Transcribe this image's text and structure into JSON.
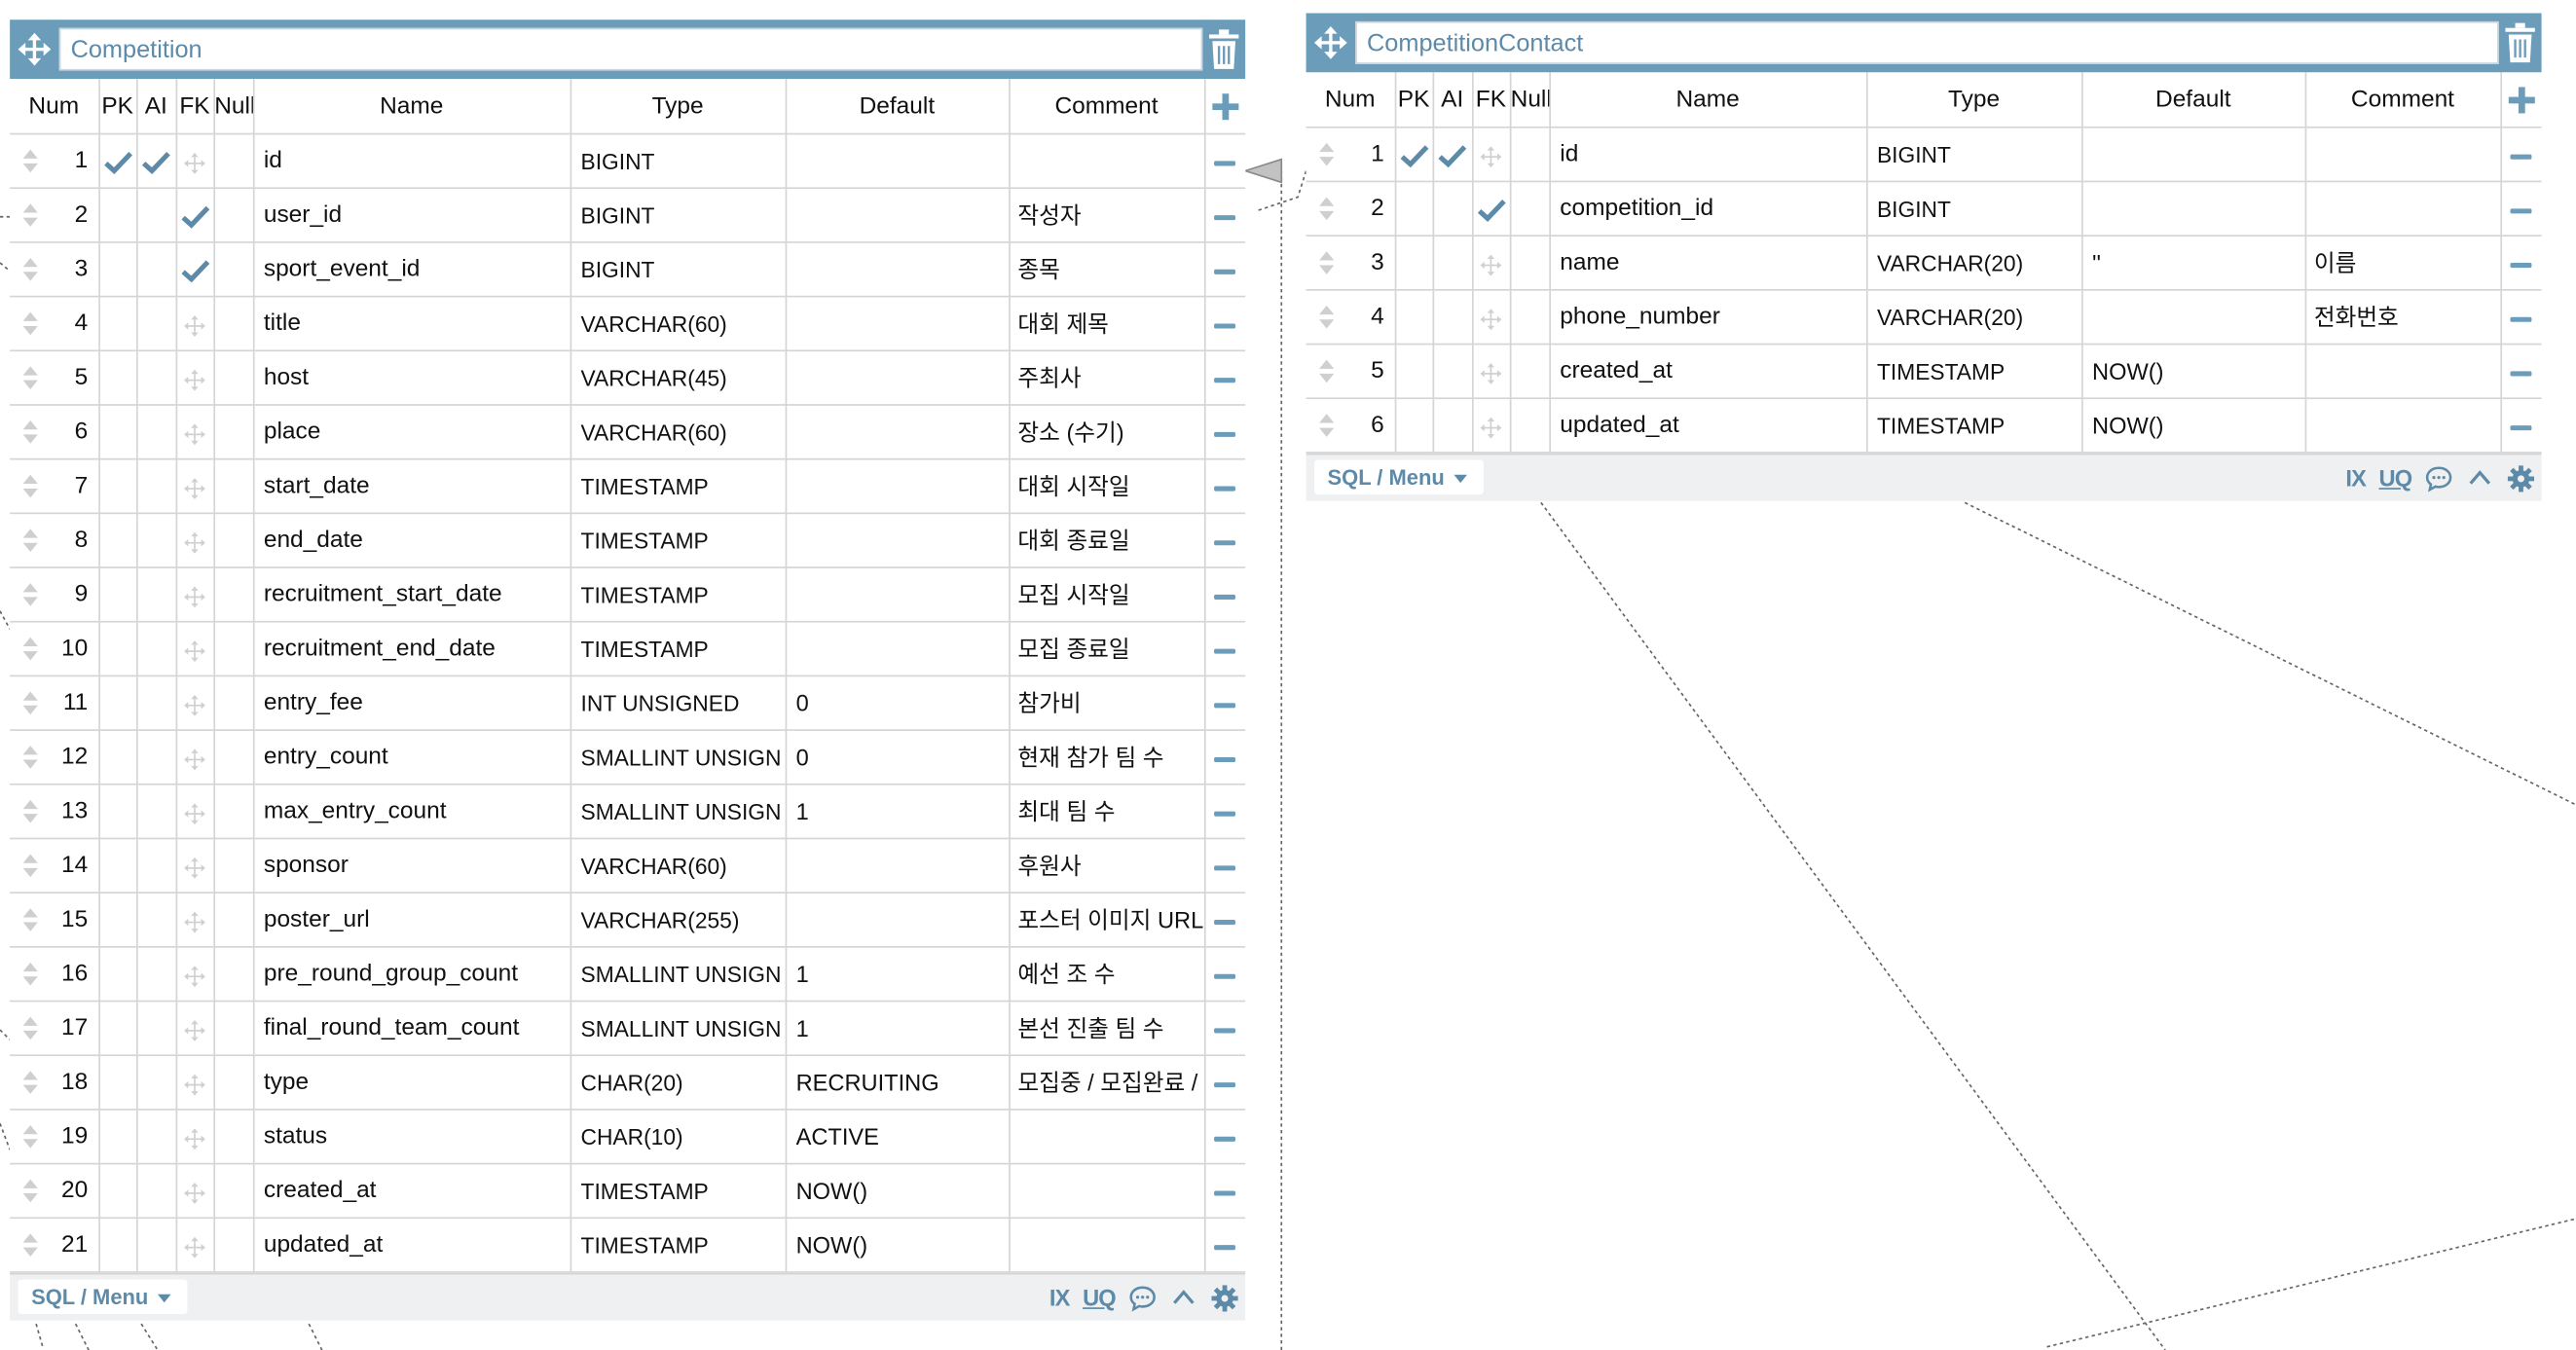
{
  "headers": {
    "num": "Num",
    "pk": "PK",
    "ai": "AI",
    "fk": "FK",
    "null": "Null",
    "name": "Name",
    "type": "Type",
    "default": "Default",
    "comment": "Comment"
  },
  "footer": {
    "sql_menu": "SQL / Menu",
    "ix": "IX",
    "uq": "UQ"
  },
  "tables": [
    {
      "name": "Competition",
      "columns": [
        {
          "num": "1",
          "pk": true,
          "ai": true,
          "fk": false,
          "name": "id",
          "type": "BIGINT",
          "default": "",
          "comment": ""
        },
        {
          "num": "2",
          "pk": false,
          "ai": false,
          "fk": true,
          "name": "user_id",
          "type": "BIGINT",
          "default": "",
          "comment": "작성자"
        },
        {
          "num": "3",
          "pk": false,
          "ai": false,
          "fk": true,
          "name": "sport_event_id",
          "type": "BIGINT",
          "default": "",
          "comment": "종목"
        },
        {
          "num": "4",
          "pk": false,
          "ai": false,
          "fk": false,
          "name": "title",
          "type": "VARCHAR(60)",
          "default": "",
          "comment": "대회 제목"
        },
        {
          "num": "5",
          "pk": false,
          "ai": false,
          "fk": false,
          "name": "host",
          "type": "VARCHAR(45)",
          "default": "",
          "comment": "주최사"
        },
        {
          "num": "6",
          "pk": false,
          "ai": false,
          "fk": false,
          "name": "place",
          "type": "VARCHAR(60)",
          "default": "",
          "comment": "장소 (수기)"
        },
        {
          "num": "7",
          "pk": false,
          "ai": false,
          "fk": false,
          "name": "start_date",
          "type": "TIMESTAMP",
          "default": "",
          "comment": "대회 시작일"
        },
        {
          "num": "8",
          "pk": false,
          "ai": false,
          "fk": false,
          "name": "end_date",
          "type": "TIMESTAMP",
          "default": "",
          "comment": "대회 종료일"
        },
        {
          "num": "9",
          "pk": false,
          "ai": false,
          "fk": false,
          "name": "recruitment_start_date",
          "type": "TIMESTAMP",
          "default": "",
          "comment": "모집 시작일"
        },
        {
          "num": "10",
          "pk": false,
          "ai": false,
          "fk": false,
          "name": "recruitment_end_date",
          "type": "TIMESTAMP",
          "default": "",
          "comment": "모집 종료일"
        },
        {
          "num": "11",
          "pk": false,
          "ai": false,
          "fk": false,
          "name": "entry_fee",
          "type": "INT UNSIGNED",
          "default": "0",
          "comment": "참가비"
        },
        {
          "num": "12",
          "pk": false,
          "ai": false,
          "fk": false,
          "name": "entry_count",
          "type": "SMALLINT UNSIGN",
          "default": "0",
          "comment": "현재 참가 팀 수"
        },
        {
          "num": "13",
          "pk": false,
          "ai": false,
          "fk": false,
          "name": "max_entry_count",
          "type": "SMALLINT UNSIGN",
          "default": "1",
          "comment": "최대 팀 수"
        },
        {
          "num": "14",
          "pk": false,
          "ai": false,
          "fk": false,
          "name": "sponsor",
          "type": "VARCHAR(60)",
          "default": "",
          "comment": "후원사"
        },
        {
          "num": "15",
          "pk": false,
          "ai": false,
          "fk": false,
          "name": "poster_url",
          "type": "VARCHAR(255)",
          "default": "",
          "comment": "포스터 이미지 URL"
        },
        {
          "num": "16",
          "pk": false,
          "ai": false,
          "fk": false,
          "name": "pre_round_group_count",
          "type": "SMALLINT UNSIGN",
          "default": "1",
          "comment": "예선 조 수"
        },
        {
          "num": "17",
          "pk": false,
          "ai": false,
          "fk": false,
          "name": "final_round_team_count",
          "type": "SMALLINT UNSIGN",
          "default": "1",
          "comment": "본선 진출 팀 수"
        },
        {
          "num": "18",
          "pk": false,
          "ai": false,
          "fk": false,
          "name": "type",
          "type": "CHAR(20)",
          "default": "RECRUITING",
          "comment": "모집중 / 모집완료 /"
        },
        {
          "num": "19",
          "pk": false,
          "ai": false,
          "fk": false,
          "name": "status",
          "type": "CHAR(10)",
          "default": "ACTIVE",
          "comment": ""
        },
        {
          "num": "20",
          "pk": false,
          "ai": false,
          "fk": false,
          "name": "created_at",
          "type": "TIMESTAMP",
          "default": "NOW()",
          "comment": ""
        },
        {
          "num": "21",
          "pk": false,
          "ai": false,
          "fk": false,
          "name": "updated_at",
          "type": "TIMESTAMP",
          "default": "NOW()",
          "comment": ""
        }
      ]
    },
    {
      "name": "CompetitionContact",
      "columns": [
        {
          "num": "1",
          "pk": true,
          "ai": true,
          "fk": false,
          "name": "id",
          "type": "BIGINT",
          "default": "",
          "comment": ""
        },
        {
          "num": "2",
          "pk": false,
          "ai": false,
          "fk": true,
          "name": "competition_id",
          "type": "BIGINT",
          "default": "",
          "comment": ""
        },
        {
          "num": "3",
          "pk": false,
          "ai": false,
          "fk": false,
          "name": "name",
          "type": "VARCHAR(20)",
          "default": "''",
          "comment": "이름"
        },
        {
          "num": "4",
          "pk": false,
          "ai": false,
          "fk": false,
          "name": "phone_number",
          "type": "VARCHAR(20)",
          "default": "",
          "comment": "전화번호"
        },
        {
          "num": "5",
          "pk": false,
          "ai": false,
          "fk": false,
          "name": "created_at",
          "type": "TIMESTAMP",
          "default": "NOW()",
          "comment": ""
        },
        {
          "num": "6",
          "pk": false,
          "ai": false,
          "fk": false,
          "name": "updated_at",
          "type": "TIMESTAMP",
          "default": "NOW()",
          "comment": ""
        }
      ]
    }
  ],
  "colors": {
    "header": "#6b9dbb",
    "accent": "#5d8aa8",
    "footer": "#eef0f2"
  }
}
